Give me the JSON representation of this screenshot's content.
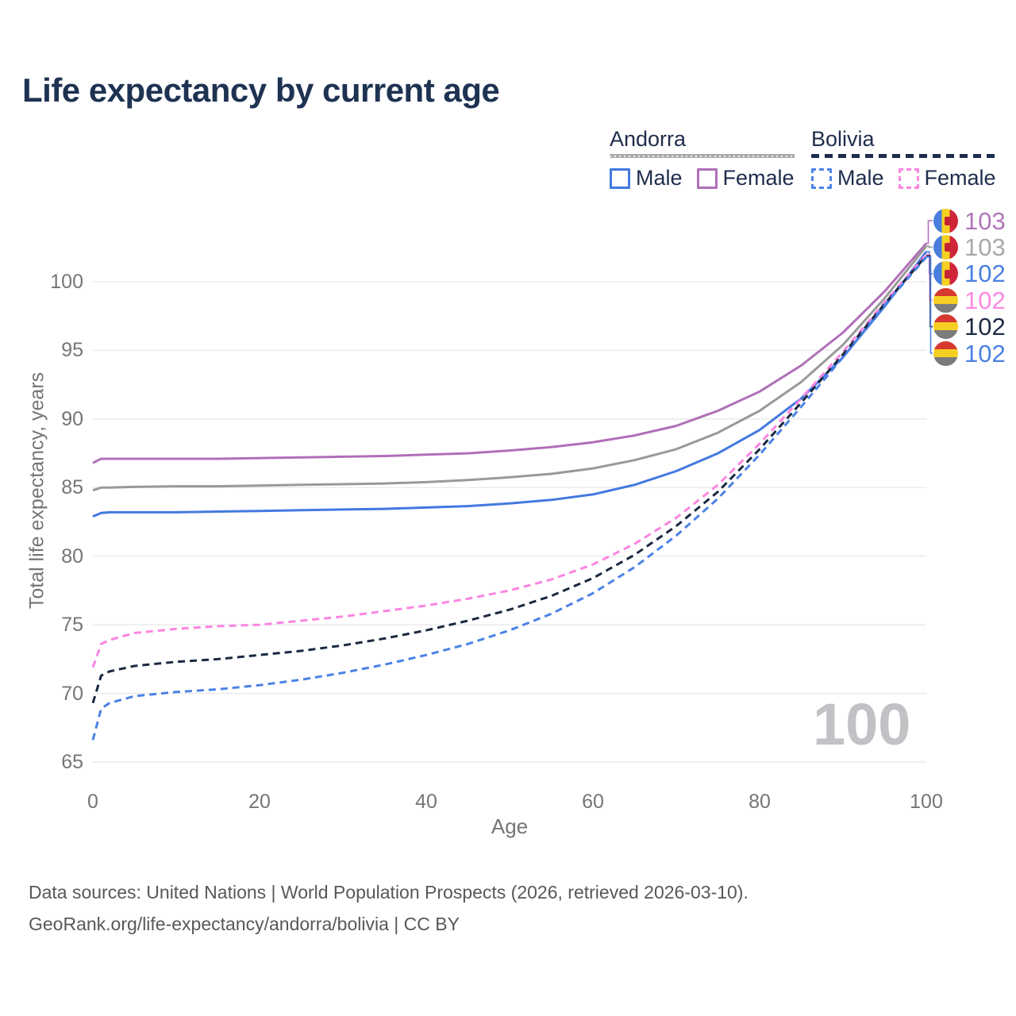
{
  "title": "Life expectancy by current age",
  "legend": {
    "andorra": {
      "label": "Andorra",
      "male": "Male",
      "female": "Female"
    },
    "bolivia": {
      "label": "Bolivia",
      "male": "Male",
      "female": "Female"
    }
  },
  "footer": {
    "line1": "Data sources: United Nations | World Population Prospects (2026, retrieved 2026-03-10).",
    "line2": "GeoRank.org/life-expectancy/andorra/bolivia | CC BY"
  },
  "colors": {
    "title_text": "#1e3252",
    "axis_text": "#757575",
    "grid": "#e7e7e7",
    "watermark": "#c2c2c6",
    "andorra_male": "#4379e0",
    "andorra_female": "#b06fb8",
    "andorra_total": "#9a999a",
    "bolivia_male": "#4b82e6",
    "bolivia_female": "#fb85e1",
    "bolivia_total": "#1b2940",
    "andorra_underline": "#ababab",
    "bolivia_underline": "#1e2d4c"
  },
  "chart_data": {
    "type": "line",
    "title": "Life expectancy by current age",
    "xlabel": "Age",
    "ylabel": "Total life expectancy, years",
    "xlim": [
      0,
      100
    ],
    "ylim": [
      65,
      103.5
    ],
    "xticks": [
      0,
      20,
      40,
      60,
      80,
      100
    ],
    "yticks": [
      65,
      70,
      75,
      80,
      85,
      90,
      95,
      100
    ],
    "grid": "horizontal",
    "legend_position": "top-right",
    "watermark": "100",
    "x": [
      0,
      1,
      2,
      5,
      10,
      15,
      20,
      25,
      30,
      35,
      40,
      45,
      50,
      55,
      60,
      65,
      70,
      75,
      80,
      85,
      90,
      95,
      100
    ],
    "series": [
      {
        "name": "Andorra Female",
        "country": "Andorra",
        "sex": "Female",
        "line_style": "solid",
        "color": "#b06fb8",
        "end_label": "103",
        "label_color": "#b175ba",
        "flag": "andorra-flag-icon",
        "values": [
          86.8,
          87.1,
          87.1,
          87.1,
          87.1,
          87.1,
          87.15,
          87.2,
          87.25,
          87.3,
          87.4,
          87.5,
          87.7,
          87.95,
          88.3,
          88.8,
          89.5,
          90.6,
          92.0,
          93.9,
          96.3,
          99.3,
          102.8
        ]
      },
      {
        "name": "Andorra Total",
        "country": "Andorra",
        "sex": "Both",
        "line_style": "solid",
        "color": "#9a999a",
        "end_label": "103",
        "label_color": "#a9a9a9",
        "flag": "andorra-flag-icon",
        "values": [
          84.8,
          85.0,
          85.0,
          85.05,
          85.1,
          85.1,
          85.15,
          85.2,
          85.25,
          85.3,
          85.4,
          85.55,
          85.75,
          86.0,
          86.4,
          87.0,
          87.8,
          89.0,
          90.6,
          92.7,
          95.4,
          98.8,
          102.6
        ]
      },
      {
        "name": "Andorra Male",
        "country": "Andorra",
        "sex": "Male",
        "line_style": "solid",
        "color": "#4379e0",
        "end_label": "102",
        "label_color": "#4b7fe0",
        "flag": "andorra-flag-icon",
        "values": [
          82.9,
          83.15,
          83.2,
          83.2,
          83.2,
          83.25,
          83.3,
          83.35,
          83.4,
          83.45,
          83.55,
          83.65,
          83.85,
          84.1,
          84.5,
          85.2,
          86.2,
          87.5,
          89.2,
          91.5,
          94.5,
          98.2,
          102.2
        ]
      },
      {
        "name": "Bolivia Female",
        "country": "Bolivia",
        "sex": "Female",
        "line_style": "dashed",
        "color": "#fb85e1",
        "end_label": "102",
        "label_color": "#fb8ae1",
        "flag": "bolivia-flag-icon",
        "values": [
          71.9,
          73.6,
          73.9,
          74.4,
          74.7,
          74.9,
          75.0,
          75.3,
          75.6,
          76.0,
          76.4,
          76.9,
          77.5,
          78.3,
          79.4,
          80.9,
          82.8,
          85.2,
          88.2,
          91.5,
          94.9,
          98.5,
          102.0
        ]
      },
      {
        "name": "Bolivia Total",
        "country": "Bolivia",
        "sex": "Both",
        "line_style": "dashed",
        "color": "#1b2940",
        "end_label": "102",
        "label_color": "#1d2b45",
        "flag": "bolivia-flag-icon",
        "values": [
          69.3,
          71.3,
          71.6,
          72.0,
          72.3,
          72.5,
          72.8,
          73.1,
          73.5,
          74.0,
          74.6,
          75.3,
          76.1,
          77.1,
          78.4,
          80.1,
          82.2,
          84.7,
          87.8,
          91.2,
          94.7,
          98.4,
          101.9
        ]
      },
      {
        "name": "Bolivia Male",
        "country": "Bolivia",
        "sex": "Male",
        "line_style": "dashed",
        "color": "#4b82e6",
        "end_label": "102",
        "label_color": "#4b7fe0",
        "flag": "bolivia-flag-icon",
        "values": [
          66.6,
          68.9,
          69.3,
          69.8,
          70.1,
          70.3,
          70.6,
          71.0,
          71.5,
          72.1,
          72.8,
          73.6,
          74.6,
          75.8,
          77.3,
          79.2,
          81.5,
          84.2,
          87.4,
          90.9,
          94.5,
          98.3,
          101.8
        ]
      }
    ]
  }
}
